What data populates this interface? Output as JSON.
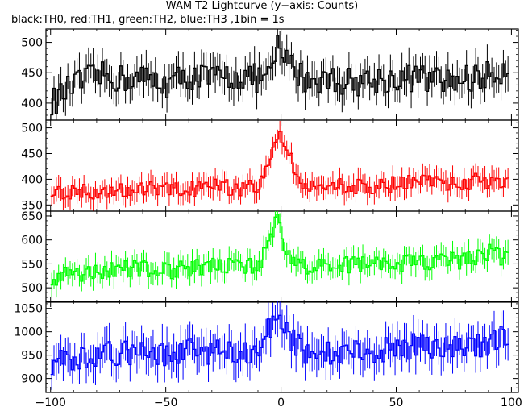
{
  "title": "WAM T2 Lightcurve (y−axis: Counts)",
  "subtitle": "black:TH0, red:TH1, green:TH2, blue:TH3 ,1bin = 1s",
  "chart_data": {
    "type": "line",
    "x_ticks": [
      -100,
      -50,
      0,
      50,
      100
    ],
    "x_tick_labels": [
      "−100",
      "−50",
      "0",
      "50",
      "100"
    ],
    "xlim": [
      -102,
      103
    ],
    "bin_seconds": 1,
    "series": [
      {
        "name": "TH0",
        "color": "#000000",
        "ylim": [
          372,
          522
        ],
        "y_ticks": [
          400,
          450,
          500
        ],
        "baseline": 438,
        "noise": 24,
        "err": 25,
        "values_by_x": {
          "-100": 400,
          "-90": 430,
          "-80": 445,
          "-70": 440,
          "-60": 440,
          "-50": 432,
          "-40": 445,
          "-30": 440,
          "-20": 445,
          "-10": 440,
          "-3": 450,
          "-2": 505,
          "-1": 490,
          "0": 475,
          "1": 470,
          "10": 440,
          "20": 440,
          "30": 435,
          "40": 438,
          "50": 440,
          "60": 442,
          "70": 435,
          "80": 440,
          "90": 445,
          "98": 460
        }
      },
      {
        "name": "TH1",
        "color": "#ff0000",
        "ylim": [
          338,
          515
        ],
        "y_ticks": [
          350,
          400,
          450,
          500
        ],
        "baseline": 382,
        "noise": 16,
        "err": 20,
        "values_by_x": {
          "-100": 380,
          "-90": 375,
          "-80": 378,
          "-70": 382,
          "-60": 380,
          "-50": 378,
          "-40": 380,
          "-30": 385,
          "-20": 383,
          "-10": 385,
          "-2": 490,
          "-1": 490,
          "0": 470,
          "10": 385,
          "20": 390,
          "30": 385,
          "40": 388,
          "50": 390,
          "60": 395,
          "70": 392,
          "80": 395,
          "90": 398,
          "98": 400
        }
      },
      {
        "name": "TH2",
        "color": "#00ff00",
        "ylim": [
          470,
          660
        ],
        "y_ticks": [
          500,
          550,
          600,
          650
        ],
        "baseline": 535,
        "noise": 18,
        "err": 22,
        "values_by_x": {
          "-100": 520,
          "-90": 530,
          "-80": 535,
          "-70": 538,
          "-60": 540,
          "-50": 535,
          "-40": 540,
          "-30": 545,
          "-20": 545,
          "-10": 543,
          "-2": 650,
          "-1": 630,
          "0": 600,
          "1": 580,
          "10": 545,
          "20": 545,
          "30": 548,
          "40": 550,
          "50": 550,
          "60": 552,
          "70": 555,
          "80": 558,
          "90": 575,
          "98": 560
        }
      },
      {
        "name": "TH3",
        "color": "#0000ff",
        "ylim": [
          870,
          1065
        ],
        "y_ticks": [
          900,
          950,
          1000,
          1050
        ],
        "baseline": 955,
        "noise": 28,
        "err": 35,
        "values_by_x": {
          "-100": 930,
          "-90": 945,
          "-80": 950,
          "-70": 955,
          "-60": 955,
          "-50": 950,
          "-40": 960,
          "-30": 955,
          "-20": 960,
          "-10": 958,
          "-2": 1050,
          "-1": 1040,
          "0": 1000,
          "10": 960,
          "20": 958,
          "30": 955,
          "40": 960,
          "50": 965,
          "60": 970,
          "70": 965,
          "80": 968,
          "90": 975,
          "98": 990
        }
      }
    ]
  }
}
